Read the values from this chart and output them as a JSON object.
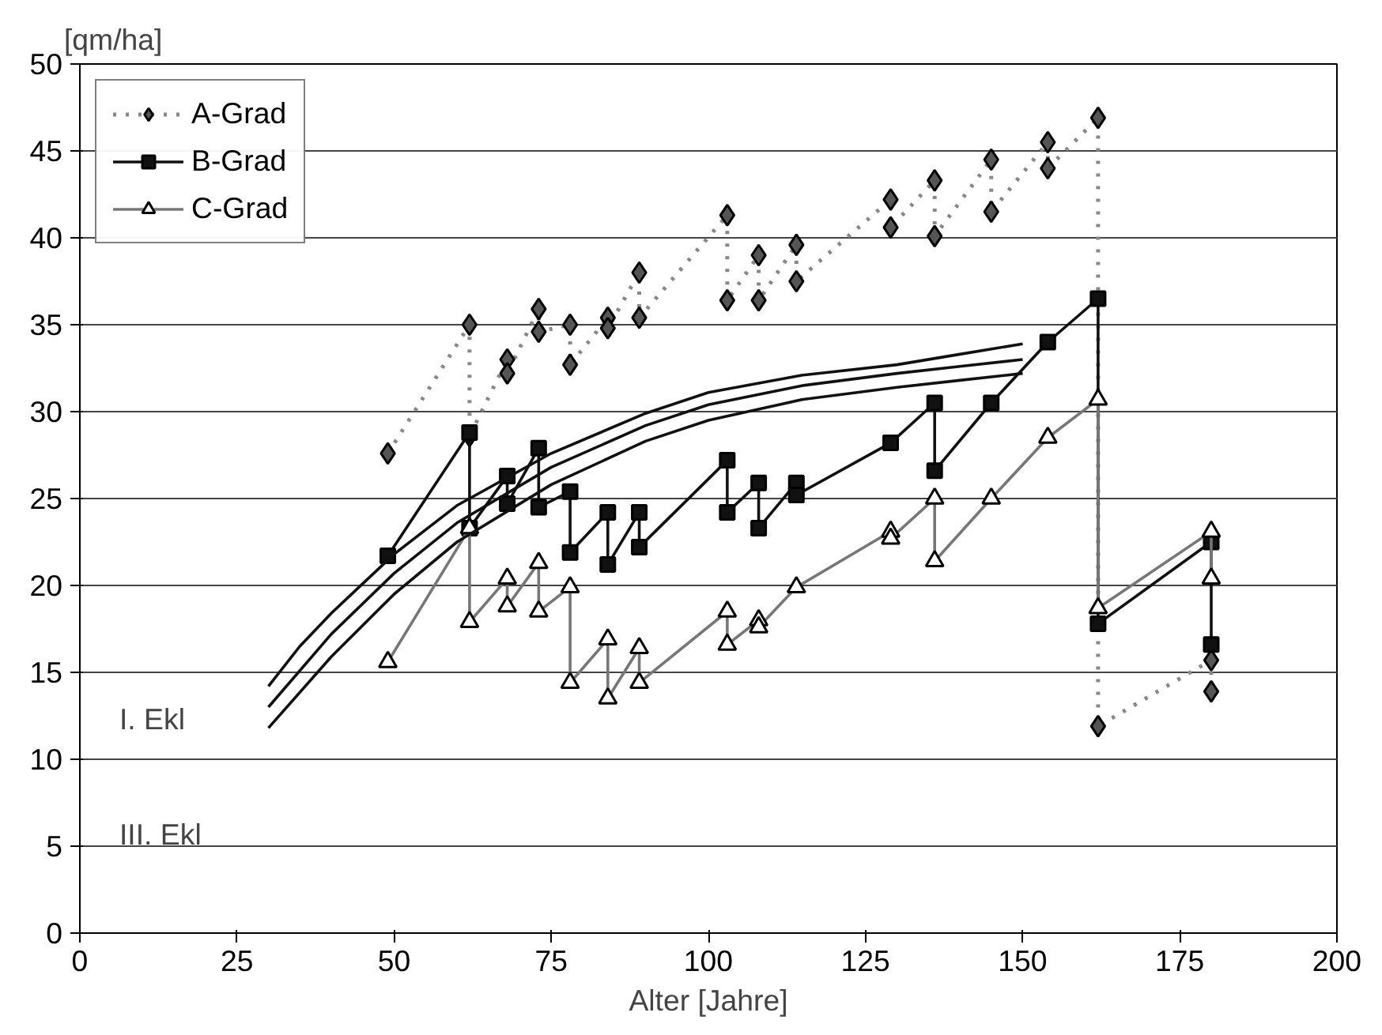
{
  "chart_data": {
    "type": "line",
    "xlabel": "Alter [Jahre]",
    "ylabel": "[qm/ha]",
    "xlim": [
      0,
      200
    ],
    "ylim": [
      0,
      50
    ],
    "xticks": [
      0,
      25,
      50,
      75,
      100,
      125,
      150,
      175,
      200
    ],
    "yticks": [
      0,
      5,
      10,
      15,
      20,
      25,
      30,
      35,
      40,
      45,
      50
    ],
    "grid": "y",
    "legend": "top left",
    "annotations": [
      "I. Ekl",
      "III. Ekl"
    ],
    "series": [
      {
        "name": "A-Grad",
        "color": "#888888",
        "marker": "diamond",
        "line_style": "dotted",
        "x": [
          49,
          62,
          62,
          68,
          68,
          73,
          73,
          78,
          78,
          84,
          84,
          89,
          89,
          103,
          103,
          108,
          108,
          114,
          114,
          129,
          129,
          136,
          136,
          145,
          145,
          154,
          154,
          162,
          162,
          180,
          180
        ],
        "values": [
          27.6,
          35.0,
          28.6,
          33.0,
          32.2,
          35.9,
          34.6,
          35.0,
          32.7,
          35.4,
          34.8,
          38.0,
          35.4,
          41.3,
          36.4,
          39.0,
          36.4,
          39.6,
          37.5,
          42.2,
          40.6,
          43.3,
          40.1,
          44.5,
          41.5,
          45.5,
          44.0,
          46.9,
          11.9,
          15.7,
          13.9
        ]
      },
      {
        "name": "B-Grad",
        "color": "#111111",
        "marker": "square",
        "line_style": "solid",
        "x": [
          49,
          62,
          62,
          68,
          68,
          73,
          73,
          78,
          78,
          84,
          84,
          89,
          89,
          103,
          103,
          108,
          108,
          114,
          114,
          129,
          136,
          136,
          145,
          154,
          162,
          162,
          180,
          180
        ],
        "values": [
          21.7,
          28.8,
          23.3,
          26.3,
          24.7,
          27.9,
          24.5,
          25.4,
          21.9,
          24.2,
          21.2,
          24.2,
          22.2,
          27.2,
          24.2,
          25.9,
          23.3,
          25.9,
          25.2,
          28.2,
          30.5,
          26.6,
          30.5,
          34.0,
          36.5,
          17.8,
          22.5,
          16.6
        ]
      },
      {
        "name": "C-Grad",
        "color": "#777777",
        "marker": "triangle",
        "line_style": "solid",
        "x": [
          49,
          62,
          62,
          68,
          68,
          73,
          73,
          78,
          78,
          84,
          84,
          89,
          89,
          103,
          103,
          108,
          108,
          114,
          129,
          129,
          136,
          136,
          145,
          154,
          162,
          162,
          180,
          180
        ],
        "values": [
          15.6,
          23.3,
          17.9,
          20.4,
          18.8,
          21.3,
          18.5,
          19.9,
          14.4,
          16.9,
          13.5,
          16.4,
          14.4,
          18.5,
          16.6,
          18.0,
          17.6,
          19.9,
          23.1,
          22.7,
          25.0,
          21.4,
          25.0,
          28.5,
          30.7,
          18.7,
          23.1,
          20.4
        ]
      },
      {
        "color": "#111111",
        "marker": "none",
        "line_style": "solid",
        "x": [
          30,
          35,
          40,
          50,
          60,
          75,
          90,
          100,
          115,
          130,
          140,
          150
        ],
        "values": [
          14.2,
          16.5,
          18.4,
          21.8,
          24.6,
          27.6,
          29.9,
          31.1,
          32.1,
          32.7,
          33.3,
          33.9
        ]
      },
      {
        "color": "#111111",
        "marker": "none",
        "line_style": "solid",
        "x": [
          30,
          40,
          50,
          60,
          75,
          90,
          100,
          115,
          130,
          140,
          150
        ],
        "values": [
          13.0,
          17.2,
          20.7,
          23.6,
          26.8,
          29.2,
          30.4,
          31.5,
          32.2,
          32.6,
          33.0
        ]
      },
      {
        "color": "#111111",
        "marker": "none",
        "line_style": "solid",
        "x": [
          30,
          40,
          50,
          60,
          75,
          90,
          100,
          115,
          130,
          140,
          150
        ],
        "values": [
          11.8,
          15.9,
          19.5,
          22.5,
          25.8,
          28.3,
          29.5,
          30.7,
          31.4,
          31.8,
          32.2
        ]
      }
    ]
  }
}
